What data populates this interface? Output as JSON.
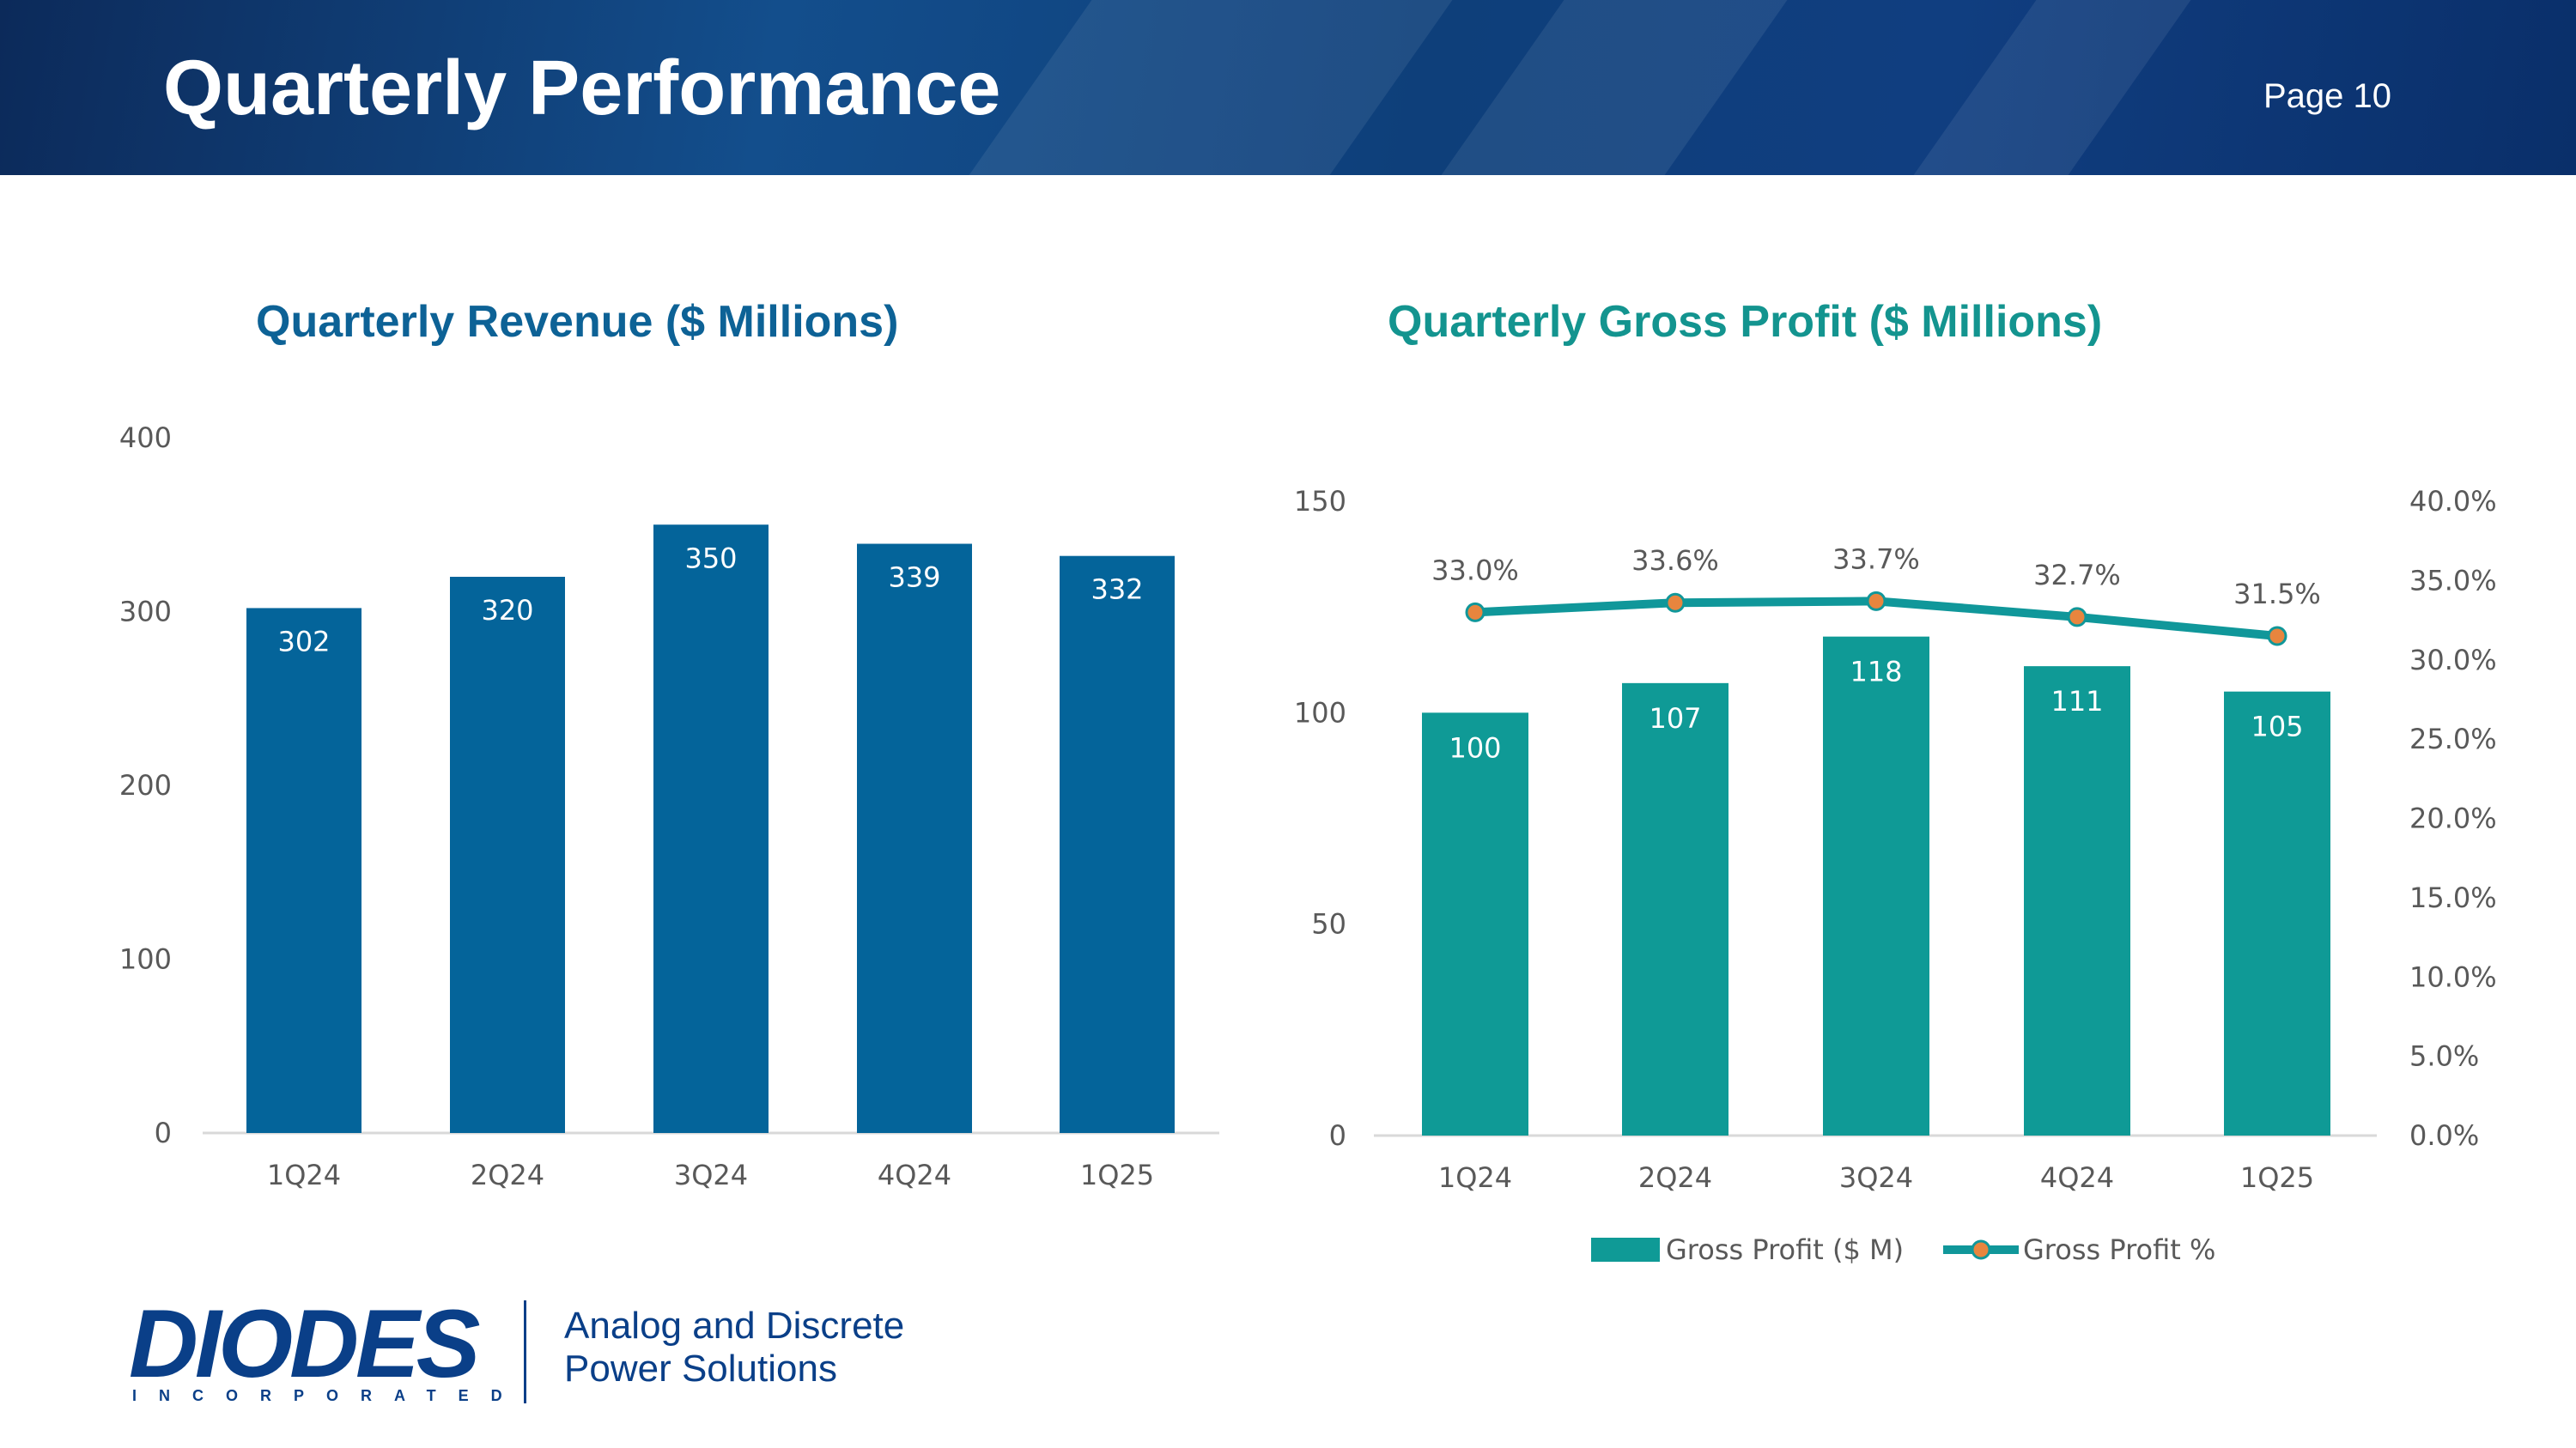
{
  "header": {
    "title": "Quarterly Performance",
    "page_label": "Page 10"
  },
  "colors": {
    "banner": "#0e3f7a",
    "revenue_bar": "#04649a",
    "gross_profit_bar": "#0f9a96",
    "line": "#10979a",
    "marker": "#e8853e"
  },
  "chart_data": [
    {
      "type": "bar",
      "title": "Quarterly Revenue ($ Millions)",
      "categories": [
        "1Q24",
        "2Q24",
        "3Q24",
        "4Q24",
        "1Q25"
      ],
      "values": [
        302,
        320,
        350,
        339,
        332
      ],
      "value_labels": [
        "302",
        "320",
        "350",
        "339",
        "332"
      ],
      "ylim": [
        0,
        400
      ],
      "yticks": [
        0,
        100,
        200,
        300,
        400
      ],
      "ytick_labels": [
        "0",
        "100",
        "200",
        "300",
        "400"
      ],
      "xlabel": "",
      "ylabel": "",
      "grid": false
    },
    {
      "type": "bar+line",
      "title": "Quarterly Gross Profit ($ Millions)",
      "categories": [
        "1Q24",
        "2Q24",
        "3Q24",
        "4Q24",
        "1Q25"
      ],
      "series": [
        {
          "name": "Gross Profit ($ M)",
          "type": "bar",
          "axis": "left",
          "values": [
            100,
            107,
            118,
            111,
            105
          ],
          "labels": [
            "100",
            "107",
            "118",
            "111",
            "105"
          ]
        },
        {
          "name": "Gross Profit %",
          "type": "line",
          "axis": "right",
          "values": [
            33.0,
            33.6,
            33.7,
            32.7,
            31.5
          ],
          "labels": [
            "33.0%",
            "33.6%",
            "33.7%",
            "32.7%",
            "31.5%"
          ]
        }
      ],
      "ylim": [
        0,
        150
      ],
      "yticks": [
        0,
        50,
        100,
        150
      ],
      "ytick_labels": [
        "0",
        "50",
        "100",
        "150"
      ],
      "y2lim": [
        0,
        40
      ],
      "y2ticks": [
        0,
        5,
        10,
        15,
        20,
        25,
        30,
        35,
        40
      ],
      "y2tick_labels": [
        "0.0%",
        "5.0%",
        "10.0%",
        "15.0%",
        "20.0%",
        "25.0%",
        "30.0%",
        "35.0%",
        "40.0%"
      ],
      "legend_position": "bottom",
      "grid": false
    }
  ],
  "footer": {
    "logo_text": "DIODES",
    "logo_subtext": "INCORPORATED",
    "tagline_line1": "Analog and Discrete",
    "tagline_line2": "Power Solutions"
  }
}
